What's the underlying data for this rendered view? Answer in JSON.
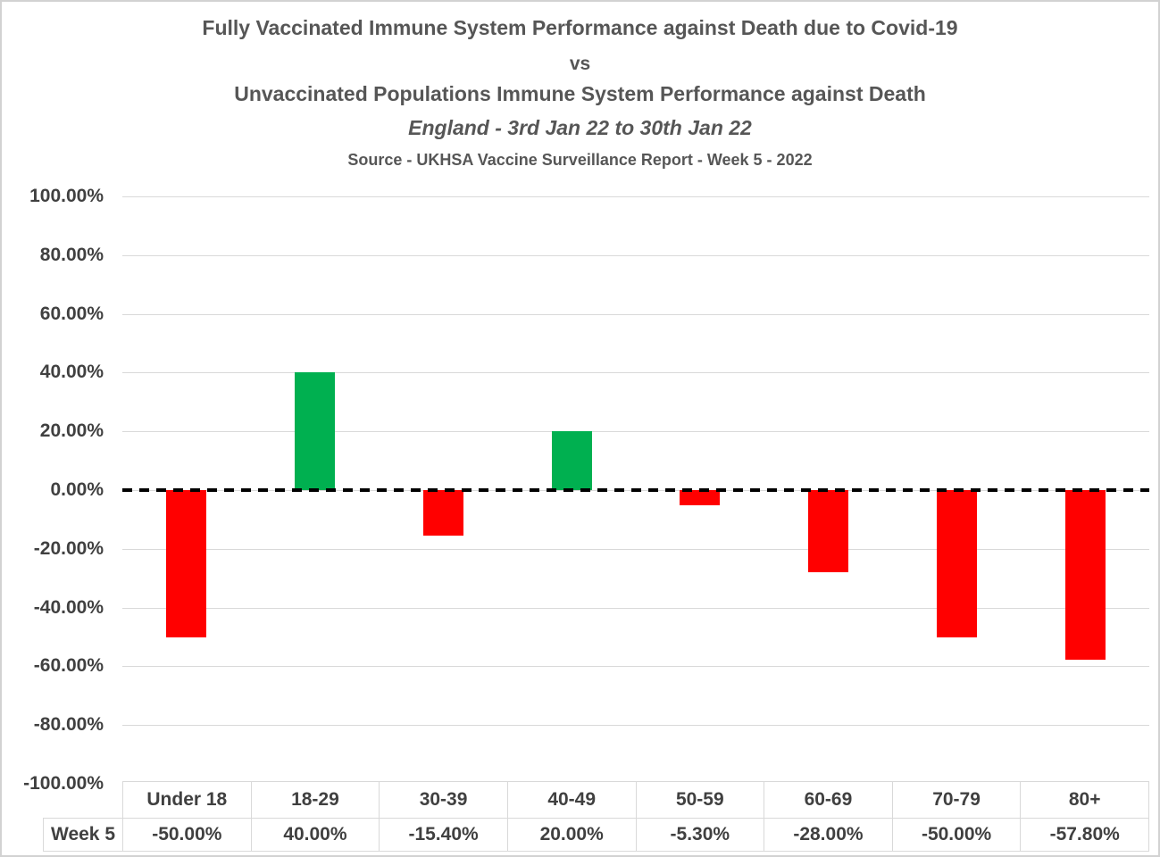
{
  "chart_data": {
    "type": "bar",
    "title_lines": {
      "line1": "Fully Vaccinated Immune System Performance against Death due to Covid-19",
      "vs": "vs",
      "line2": "Unvaccinated Populations Immune System Performance against Death",
      "subtitle": "England - 3rd Jan 22 to 30th Jan 22",
      "source": "Source - UKHSA Vaccine Surveillance Report - Week 5 - 2022"
    },
    "categories": [
      "Under 18",
      "18-29",
      "30-39",
      "40-49",
      "50-59",
      "60-69",
      "70-79",
      "80+"
    ],
    "series": [
      {
        "name": "Week 5",
        "values": [
          -50.0,
          40.0,
          -15.4,
          20.0,
          -5.3,
          -28.0,
          -50.0,
          -57.8
        ],
        "value_labels": [
          "-50.00%",
          "40.00%",
          "-15.40%",
          "20.00%",
          "-5.30%",
          "-28.00%",
          "-50.00%",
          "-57.80%"
        ]
      }
    ],
    "xlabel": "",
    "ylabel": "",
    "ylim": [
      -100,
      100
    ],
    "y_step": 20,
    "y_tick_labels": [
      "100.00%",
      "80.00%",
      "60.00%",
      "40.00%",
      "20.00%",
      "0.00%",
      "-20.00%",
      "-40.00%",
      "-60.00%",
      "-80.00%",
      "-100.00%"
    ],
    "grid": true,
    "zero_line_style": "dashed",
    "legend_position": "none",
    "data_table_shown": true,
    "colors": {
      "positive_bar": "#00B050",
      "negative_bar": "#FF0000",
      "gridline": "#D9D9D9",
      "zero_line": "#000000",
      "axis_text": "#404040",
      "title_text": "#565656",
      "table_border": "#D9D9D9"
    }
  }
}
